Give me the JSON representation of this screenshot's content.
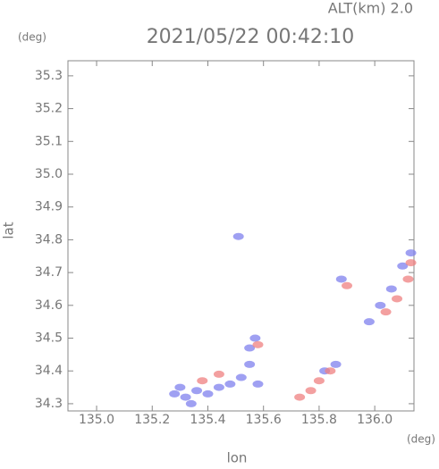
{
  "chart_data": {
    "type": "scatter",
    "title": "2021/05/22 00:42:10",
    "subtitle": "ALT(km) 2.0",
    "y_unit": "(deg)",
    "x_unit": "(deg)",
    "xlabel": "lon",
    "ylabel": "lat",
    "xlim": [
      134.897,
      136.141
    ],
    "ylim": [
      34.278,
      35.346
    ],
    "xticks": [
      {
        "value": 135.0,
        "label": "135.0"
      },
      135.2,
      135.4,
      135.6,
      135.8,
      {
        "value": 136.0,
        "label": "136.0"
      }
    ],
    "yticks": [
      {
        "value": 34.3,
        "label": "34.3"
      },
      34.4,
      34.5,
      34.6,
      34.7,
      34.8,
      34.9,
      {
        "value": 35.0,
        "label": "35.0"
      },
      35.1,
      35.2,
      35.3
    ],
    "series": [
      {
        "color": "#7f80ee",
        "x": [
          135.51,
          135.28,
          135.32,
          135.36,
          135.4,
          135.44,
          135.48,
          135.52,
          135.55,
          135.57,
          135.55,
          135.58,
          135.82,
          135.86,
          135.88,
          135.98,
          136.02,
          136.06,
          136.1,
          136.13,
          135.3,
          135.34
        ],
        "values": [
          34.81,
          34.33,
          34.32,
          34.34,
          34.33,
          34.35,
          34.36,
          34.38,
          34.47,
          34.5,
          34.42,
          34.36,
          34.4,
          34.42,
          34.68,
          34.55,
          34.6,
          34.65,
          34.72,
          34.76,
          34.35,
          34.3
        ]
      },
      {
        "color": "#ef8080",
        "x": [
          135.58,
          135.73,
          135.77,
          135.8,
          135.84,
          135.9,
          136.04,
          136.08,
          136.12,
          136.13,
          135.44,
          135.38
        ],
        "values": [
          34.48,
          34.32,
          34.34,
          34.37,
          34.4,
          34.66,
          34.58,
          34.62,
          34.68,
          34.73,
          34.39,
          34.37
        ]
      }
    ]
  }
}
